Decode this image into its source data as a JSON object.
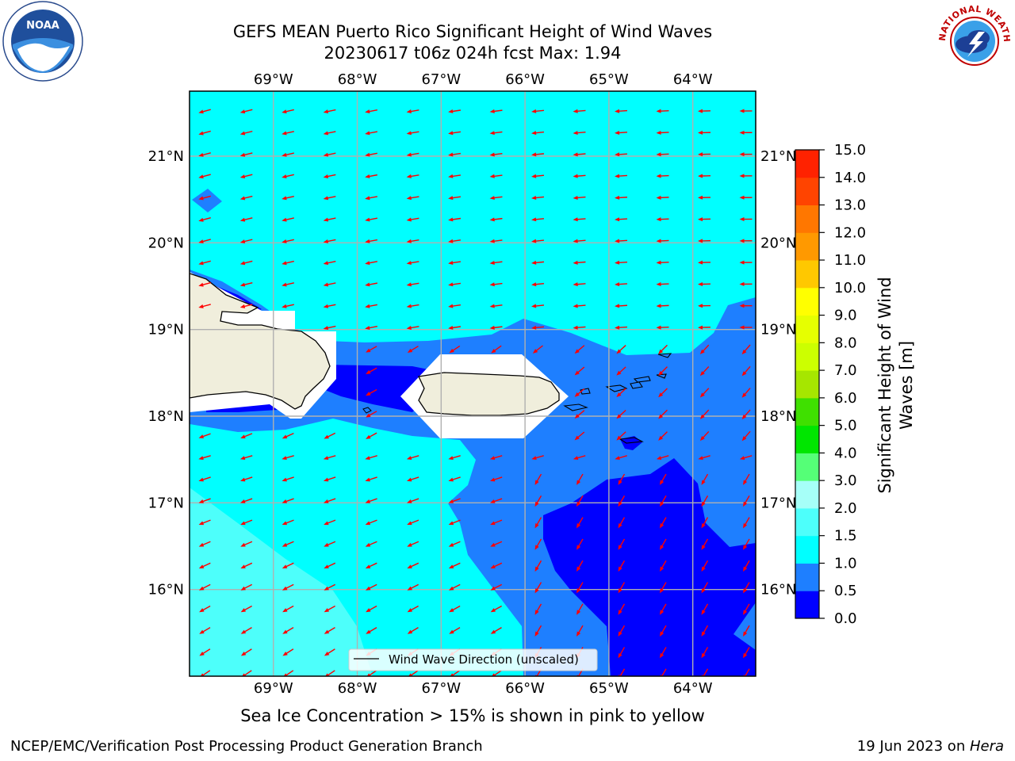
{
  "title_line1": "GEFS MEAN Puerto Rico Significant Height of Wind Waves",
  "title_line2": "20230617 t06z 024h fcst   Max: 1.94",
  "caption": "Sea Ice Concentration > 15% is shown in pink to yellow",
  "footer_left": "NCEP/EMC/Verification Post Processing Product Generation Branch",
  "footer_right_date": "19 Jun 2023 on ",
  "footer_right_host": "Hera",
  "legend_label": "Wind Wave Direction (unscaled)",
  "colorbar": {
    "label_line1": "Significant Height of Wind",
    "label_line2": "Waves [m]",
    "ticks": [
      "0.0",
      "0.5",
      "1.0",
      "1.5",
      "2.0",
      "3.0",
      "4.0",
      "5.0",
      "6.0",
      "7.0",
      "8.0",
      "9.0",
      "10.0",
      "11.0",
      "12.0",
      "13.0",
      "14.0",
      "15.0"
    ],
    "colors": [
      "#0000ff",
      "#1e7fff",
      "#00ffff",
      "#4dfffb",
      "#a6fff8",
      "#55ff77",
      "#00e600",
      "#3fe000",
      "#a6e600",
      "#ccff00",
      "#e6ff00",
      "#ffff00",
      "#ffc800",
      "#ff9900",
      "#ff7700",
      "#ff4400",
      "#ff2200",
      "#ff0000"
    ]
  },
  "map": {
    "lon_labels": [
      "69°W",
      "68°W",
      "67°W",
      "66°W",
      "65°W",
      "64°W"
    ],
    "lat_labels": [
      "21°N",
      "20°N",
      "19°N",
      "18°N",
      "17°N",
      "16°N"
    ],
    "lon_values": [
      -69,
      -68,
      -67,
      -66,
      -65,
      -64
    ],
    "lat_values": [
      21,
      20,
      19,
      18,
      17,
      16
    ],
    "extent": {
      "lon_min": -70.0,
      "lon_max": -63.25,
      "lat_min": 15.0,
      "lat_max": 21.75
    },
    "colors": {
      "ocean_1_1_5": "#00ffff",
      "ocean_0_5_1": "#1e7fff",
      "ocean_0_0_5": "#0000ff",
      "ocean_1_5_2": "#4dfffb",
      "land": "#f0eedc",
      "arrow": "#ff0000",
      "grid": "#b0b0b0"
    }
  },
  "logos": {
    "left_text": "NOAA",
    "right_text": "NATIONAL WEATHER SERVICE"
  }
}
